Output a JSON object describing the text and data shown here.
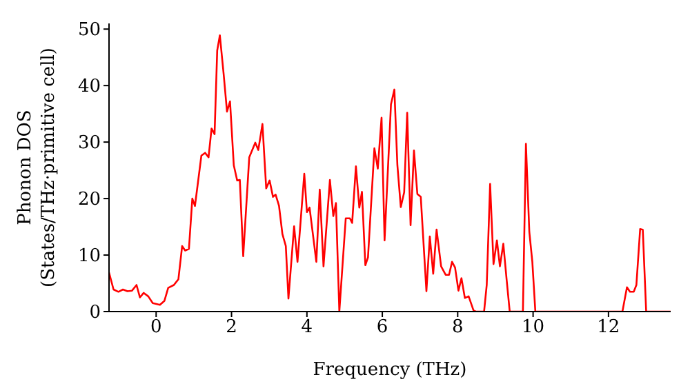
{
  "chart_data": {
    "type": "line",
    "xlabel": "Frequency (THz)",
    "ylabel": "Phonon DOS\n(States/THz·primitive cell)",
    "x": [
      -1.25,
      -1.13,
      -1.0,
      -0.88,
      -0.76,
      -0.64,
      -0.52,
      -0.43,
      -0.33,
      -0.21,
      -0.09,
      0.1,
      0.22,
      0.32,
      0.47,
      0.59,
      0.69,
      0.77,
      0.87,
      0.96,
      1.03,
      1.2,
      1.3,
      1.39,
      1.47,
      1.55,
      1.62,
      1.69,
      1.79,
      1.88,
      1.96,
      2.06,
      2.15,
      2.22,
      2.31,
      2.47,
      2.63,
      2.71,
      2.82,
      2.92,
      3.01,
      3.1,
      3.17,
      3.26,
      3.35,
      3.44,
      3.51,
      3.66,
      3.75,
      3.93,
      4.0,
      4.07,
      4.25,
      4.34,
      4.44,
      4.61,
      4.7,
      4.77,
      4.86,
      5.03,
      5.14,
      5.2,
      5.3,
      5.39,
      5.46,
      5.55,
      5.62,
      5.79,
      5.88,
      5.98,
      6.06,
      6.23,
      6.32,
      6.4,
      6.49,
      6.58,
      6.66,
      6.75,
      6.84,
      6.93,
      7.02,
      7.17,
      7.26,
      7.35,
      7.44,
      7.56,
      7.68,
      7.77,
      7.85,
      7.93,
      8.02,
      8.1,
      8.19,
      8.29,
      8.42,
      8.48,
      8.7,
      8.77,
      8.86,
      8.95,
      9.04,
      9.12,
      9.21,
      9.3,
      9.38,
      9.73,
      9.81,
      9.9,
      9.98,
      10.06,
      12.37,
      12.49,
      12.57,
      12.67,
      12.74,
      12.84,
      12.91,
      13.0,
      13.65
    ],
    "series": [
      {
        "color": "#ff0000",
        "values": [
          6.9,
          3.9,
          3.5,
          3.9,
          3.6,
          3.7,
          4.7,
          2.5,
          3.3,
          2.7,
          1.5,
          1.2,
          1.9,
          4.2,
          4.7,
          5.7,
          11.6,
          10.8,
          11.1,
          20,
          18.7,
          27.6,
          28.1,
          27.3,
          32.4,
          31.4,
          46.2,
          48.9,
          42.1,
          35.4,
          37.2,
          25.9,
          23.2,
          23.3,
          9.8,
          27.3,
          29.9,
          28.6,
          33.2,
          21.8,
          23.2,
          20.3,
          20.7,
          18.7,
          13.7,
          11.6,
          2.3,
          15.1,
          8.8,
          24.4,
          17.6,
          18.4,
          8.8,
          21.6,
          8.0,
          23.3,
          16.9,
          19.2,
          0,
          16.5,
          16.5,
          15.7,
          25.7,
          18.4,
          21.2,
          8.2,
          9.6,
          28.9,
          25.3,
          34.3,
          12.6,
          36.7,
          39.3,
          25.9,
          18.5,
          21.1,
          35.2,
          15.3,
          28.5,
          20.8,
          20.3,
          3.6,
          13.3,
          6.7,
          14.5,
          8.0,
          6.5,
          6.5,
          8.8,
          7.8,
          3.7,
          5.9,
          2.4,
          2.7,
          0.2,
          0,
          0,
          4.7,
          22.6,
          8.4,
          12.6,
          8.0,
          12.0,
          5.5,
          0,
          0,
          29.7,
          14.1,
          8.8,
          0,
          0,
          4.3,
          3.5,
          3.5,
          4.7,
          14.6,
          14.5,
          0,
          0
        ]
      }
    ],
    "xlim": [
      -1.25,
      13.65
    ],
    "xticks": [
      0,
      2,
      4,
      6,
      8,
      10,
      12
    ],
    "ylim": [
      0,
      51
    ],
    "yticks": [
      0,
      10,
      20,
      30,
      40,
      50
    ],
    "grid": false,
    "legend": false,
    "marker": "none",
    "line_style": "solid"
  }
}
